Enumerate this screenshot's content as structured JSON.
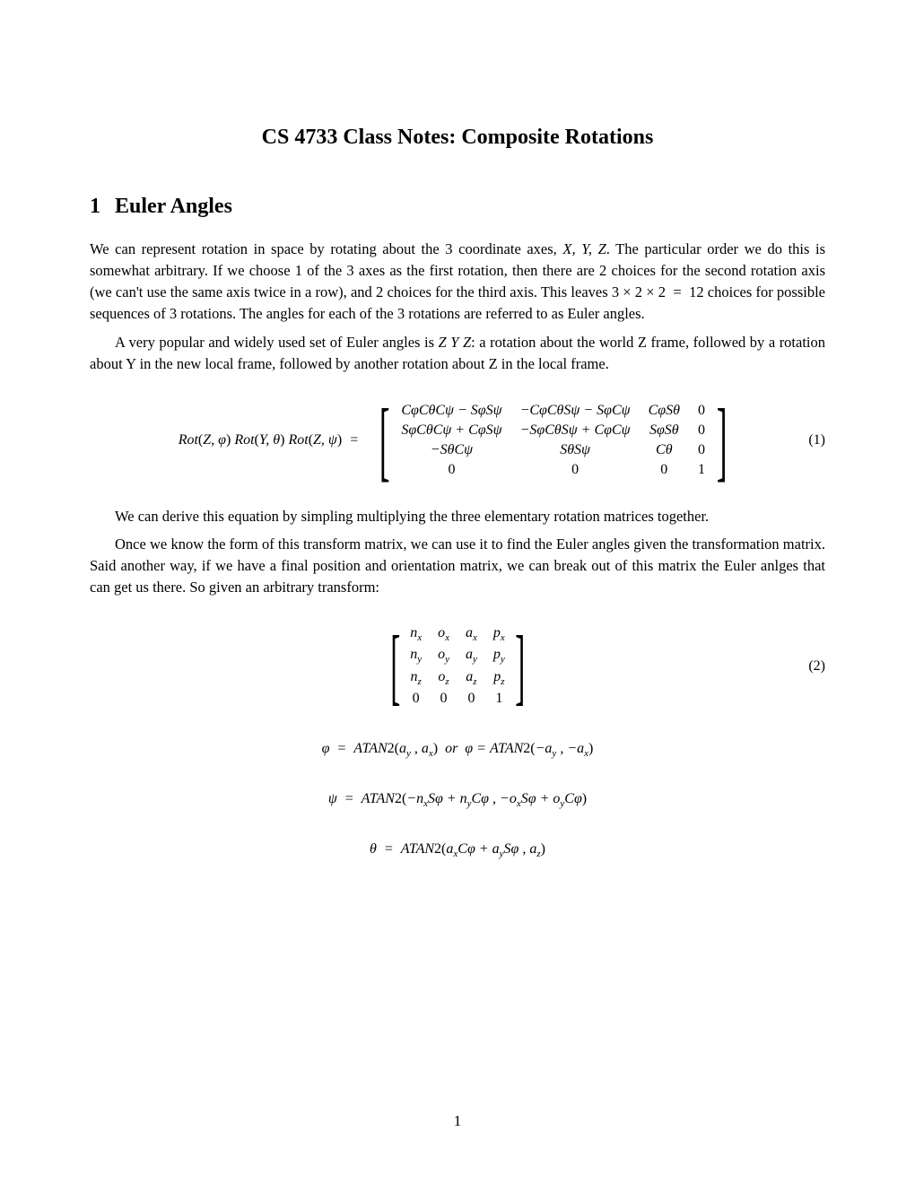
{
  "title": "CS 4733 Class Notes: Composite Rotations",
  "section1": {
    "number": "1",
    "heading": "Euler Angles"
  },
  "para1": "We can represent rotation in space by rotating about the 3 coordinate axes, X, Y, Z. The particular order we do this is somewhat arbitrary. If we choose 1 of the 3 axes as the first rotation, then there are 2 choices for the second rotation axis (we can't use the same axis twice in a row), and 2 choices for the third axis. This leaves 3 × 2 × 2 = 12 choices for possible sequences of 3 rotations. The angles for each of the 3 rotations are referred to as Euler angles.",
  "para2": "A very popular and widely used set of Euler angles is Z Y Z: a rotation about the world Z frame, followed by a rotation about Y in the new local frame, followed by another rotation about Z in the local frame.",
  "eq1": {
    "lhs": "Rot(Z, φ) Rot(Y, θ) Rot(Z, ψ)  =",
    "rows": [
      [
        "CφCθCψ − SφSψ",
        "−CφCθSψ − SφCψ",
        "CφSθ",
        "0"
      ],
      [
        "SφCθCψ + CφSψ",
        "−SφCθSψ + CφCψ",
        "SφSθ",
        "0"
      ],
      [
        "−SθCψ",
        "SθSψ",
        "Cθ",
        "0"
      ],
      [
        "0",
        "0",
        "0",
        "1"
      ]
    ],
    "number": "(1)"
  },
  "para3": "We can derive this equation by simpling multiplying the three elementary rotation matrices together.",
  "para4": "Once we know the form of this transform matrix, we can use it to find the Euler angles given the transformation matrix. Said another way, if we have a final position and orientation matrix, we can break out of this matrix the Euler anlges that can get us there. So given an arbitrary transform:",
  "eq2": {
    "rows": [
      [
        "n",
        "o",
        "a",
        "p"
      ],
      [
        "n",
        "o",
        "a",
        "p"
      ],
      [
        "n",
        "o",
        "a",
        "p"
      ],
      [
        "0",
        "0",
        "0",
        "1"
      ]
    ],
    "subs": [
      [
        "x",
        "x",
        "x",
        "x"
      ],
      [
        "y",
        "y",
        "y",
        "y"
      ],
      [
        "z",
        "z",
        "z",
        "z"
      ],
      [
        "",
        "",
        "",
        ""
      ]
    ],
    "number": "(2)"
  },
  "eq3": "φ  =  ATAN2(a_y , a_x)  or  φ = ATAN2(−a_y , −a_x)",
  "eq4": "ψ  =  ATAN2(−n_x Sφ + n_y Cφ , −o_x Sφ + o_y Cφ)",
  "eq5": "θ  =  ATAN2(a_x Cφ + a_y Sφ , a_z)",
  "pageNumber": "1"
}
